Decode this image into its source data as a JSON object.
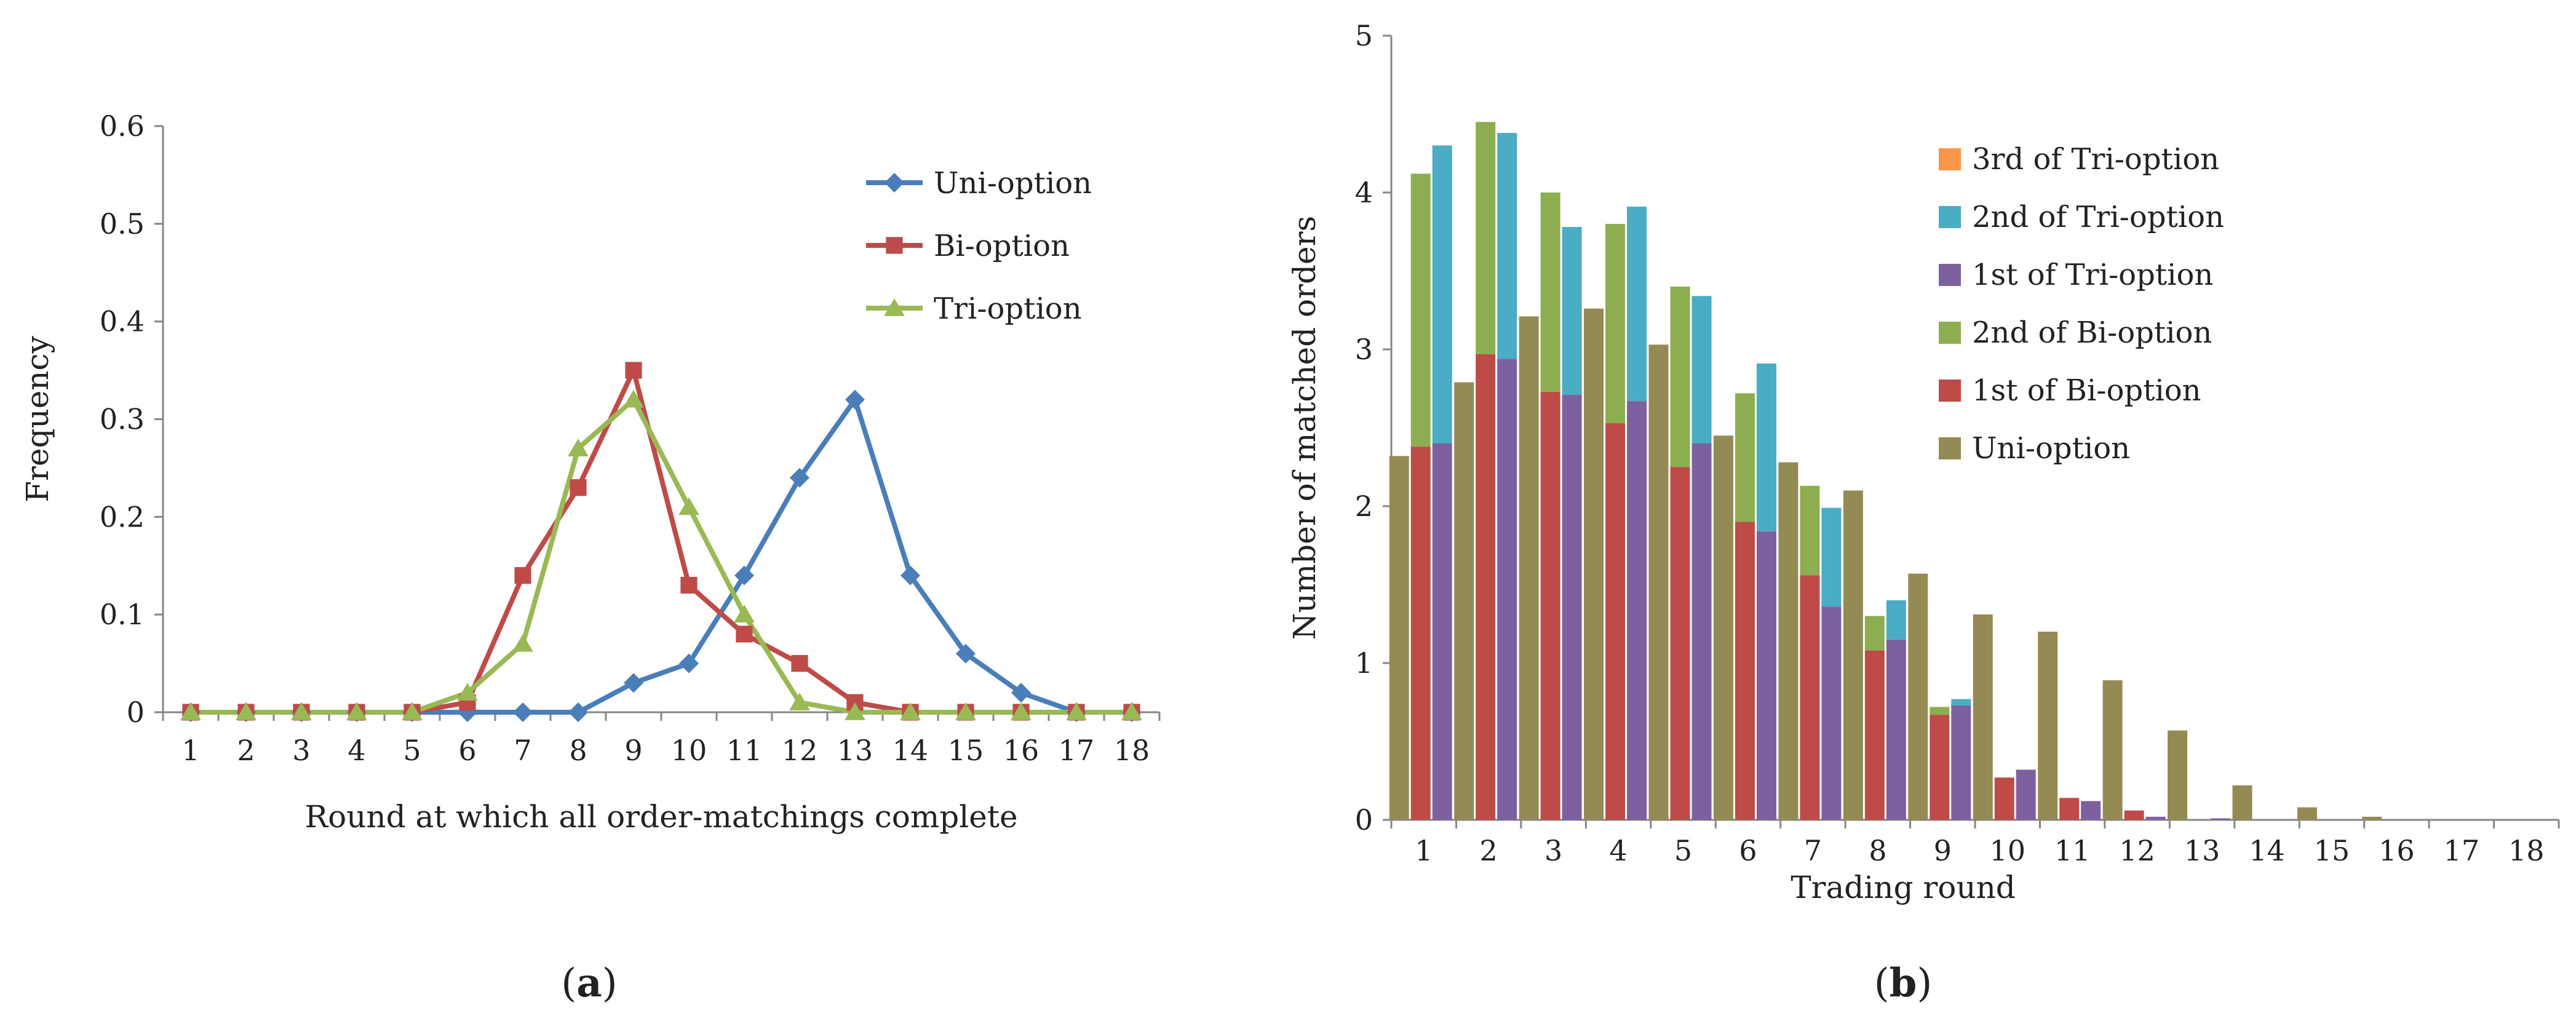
{
  "panels": [
    {
      "caption_pre": "(",
      "caption_label": "a",
      "caption_post": ")"
    },
    {
      "caption_pre": "(",
      "caption_label": "b",
      "caption_post": ")"
    }
  ],
  "chart_data": [
    {
      "type": "line",
      "title": "",
      "xlabel": "Round at which all order-matchings complete",
      "ylabel": "Frequency",
      "categories": [
        "1",
        "2",
        "3",
        "4",
        "5",
        "6",
        "7",
        "8",
        "9",
        "10",
        "11",
        "12",
        "13",
        "14",
        "15",
        "16",
        "17",
        "18"
      ],
      "ylim": [
        0,
        0.6
      ],
      "yticks": [
        "0",
        "0.1",
        "0.2",
        "0.3",
        "0.4",
        "0.5",
        "0.6"
      ],
      "legend_position": "top-right",
      "series": [
        {
          "name": "Uni-option",
          "color": "#4a7ebb",
          "marker": "diamond",
          "values": [
            0,
            0,
            0,
            0,
            0,
            0,
            0,
            0,
            0.03,
            0.05,
            0.14,
            0.24,
            0.32,
            0.14,
            0.06,
            0.02,
            0,
            0
          ]
        },
        {
          "name": "Bi-option",
          "color": "#be4b48",
          "marker": "square",
          "values": [
            0,
            0,
            0,
            0,
            0,
            0.01,
            0.14,
            0.23,
            0.35,
            0.13,
            0.08,
            0.05,
            0.01,
            0,
            0,
            0,
            0,
            0
          ]
        },
        {
          "name": "Tri-option",
          "color": "#98b954",
          "marker": "triangle",
          "values": [
            0,
            0,
            0,
            0,
            0,
            0.02,
            0.07,
            0.27,
            0.32,
            0.21,
            0.1,
            0.01,
            0,
            0,
            0,
            0,
            0,
            0
          ]
        }
      ]
    },
    {
      "type": "bar",
      "subtype": "grouped-stacked",
      "title": "",
      "xlabel": "Trading round",
      "ylabel": "Number of matched orders",
      "categories": [
        "1",
        "2",
        "3",
        "4",
        "5",
        "6",
        "7",
        "8",
        "9",
        "10",
        "11",
        "12",
        "13",
        "14",
        "15",
        "16",
        "17",
        "18"
      ],
      "ylim": [
        0,
        5
      ],
      "yticks": [
        "0",
        "1",
        "2",
        "3",
        "4",
        "5"
      ],
      "legend_position": "top-right",
      "legend_order": [
        "3rd of Tri-option",
        "2nd of Tri-option",
        "1st of Tri-option",
        "2nd of Bi-option",
        "1st of Bi-option",
        "Uni-option"
      ],
      "series": [
        {
          "name": "Uni-option",
          "color": "#948a54",
          "stack": "uni",
          "values": [
            2.32,
            2.79,
            3.21,
            3.26,
            3.03,
            2.45,
            2.28,
            2.1,
            1.57,
            1.31,
            1.2,
            0.89,
            0.57,
            0.22,
            0.08,
            0.02,
            0,
            0
          ]
        },
        {
          "name": "1st of Bi-option",
          "color": "#be4b48",
          "stack": "bi",
          "values": [
            2.38,
            2.97,
            2.73,
            2.53,
            2.25,
            1.9,
            1.56,
            1.08,
            0.67,
            0.27,
            0.14,
            0.06,
            0,
            0,
            0,
            0,
            0,
            0
          ]
        },
        {
          "name": "2nd of Bi-option",
          "color": "#8cae51",
          "stack": "bi",
          "values": [
            1.74,
            1.48,
            1.27,
            1.27,
            1.15,
            0.82,
            0.57,
            0.22,
            0.05,
            0,
            0,
            0,
            0,
            0,
            0,
            0,
            0,
            0
          ]
        },
        {
          "name": "1st of Tri-option",
          "color": "#7d60a0",
          "stack": "tri",
          "values": [
            2.4,
            2.94,
            2.71,
            2.67,
            2.4,
            1.84,
            1.36,
            1.15,
            0.73,
            0.32,
            0.12,
            0.02,
            0.01,
            0,
            0,
            0,
            0,
            0
          ]
        },
        {
          "name": "2nd of Tri-option",
          "color": "#4bacc6",
          "stack": "tri",
          "values": [
            1.9,
            1.44,
            1.07,
            1.24,
            0.94,
            1.07,
            0.63,
            0.25,
            0.04,
            0,
            0,
            0,
            0,
            0,
            0,
            0,
            0,
            0
          ]
        },
        {
          "name": "3rd of Tri-option",
          "color": "#f79646",
          "stack": "tri",
          "values": [
            0,
            0,
            0,
            0,
            0,
            0,
            0,
            0,
            0,
            0,
            0,
            0,
            0,
            0,
            0,
            0,
            0,
            0
          ]
        }
      ]
    }
  ]
}
